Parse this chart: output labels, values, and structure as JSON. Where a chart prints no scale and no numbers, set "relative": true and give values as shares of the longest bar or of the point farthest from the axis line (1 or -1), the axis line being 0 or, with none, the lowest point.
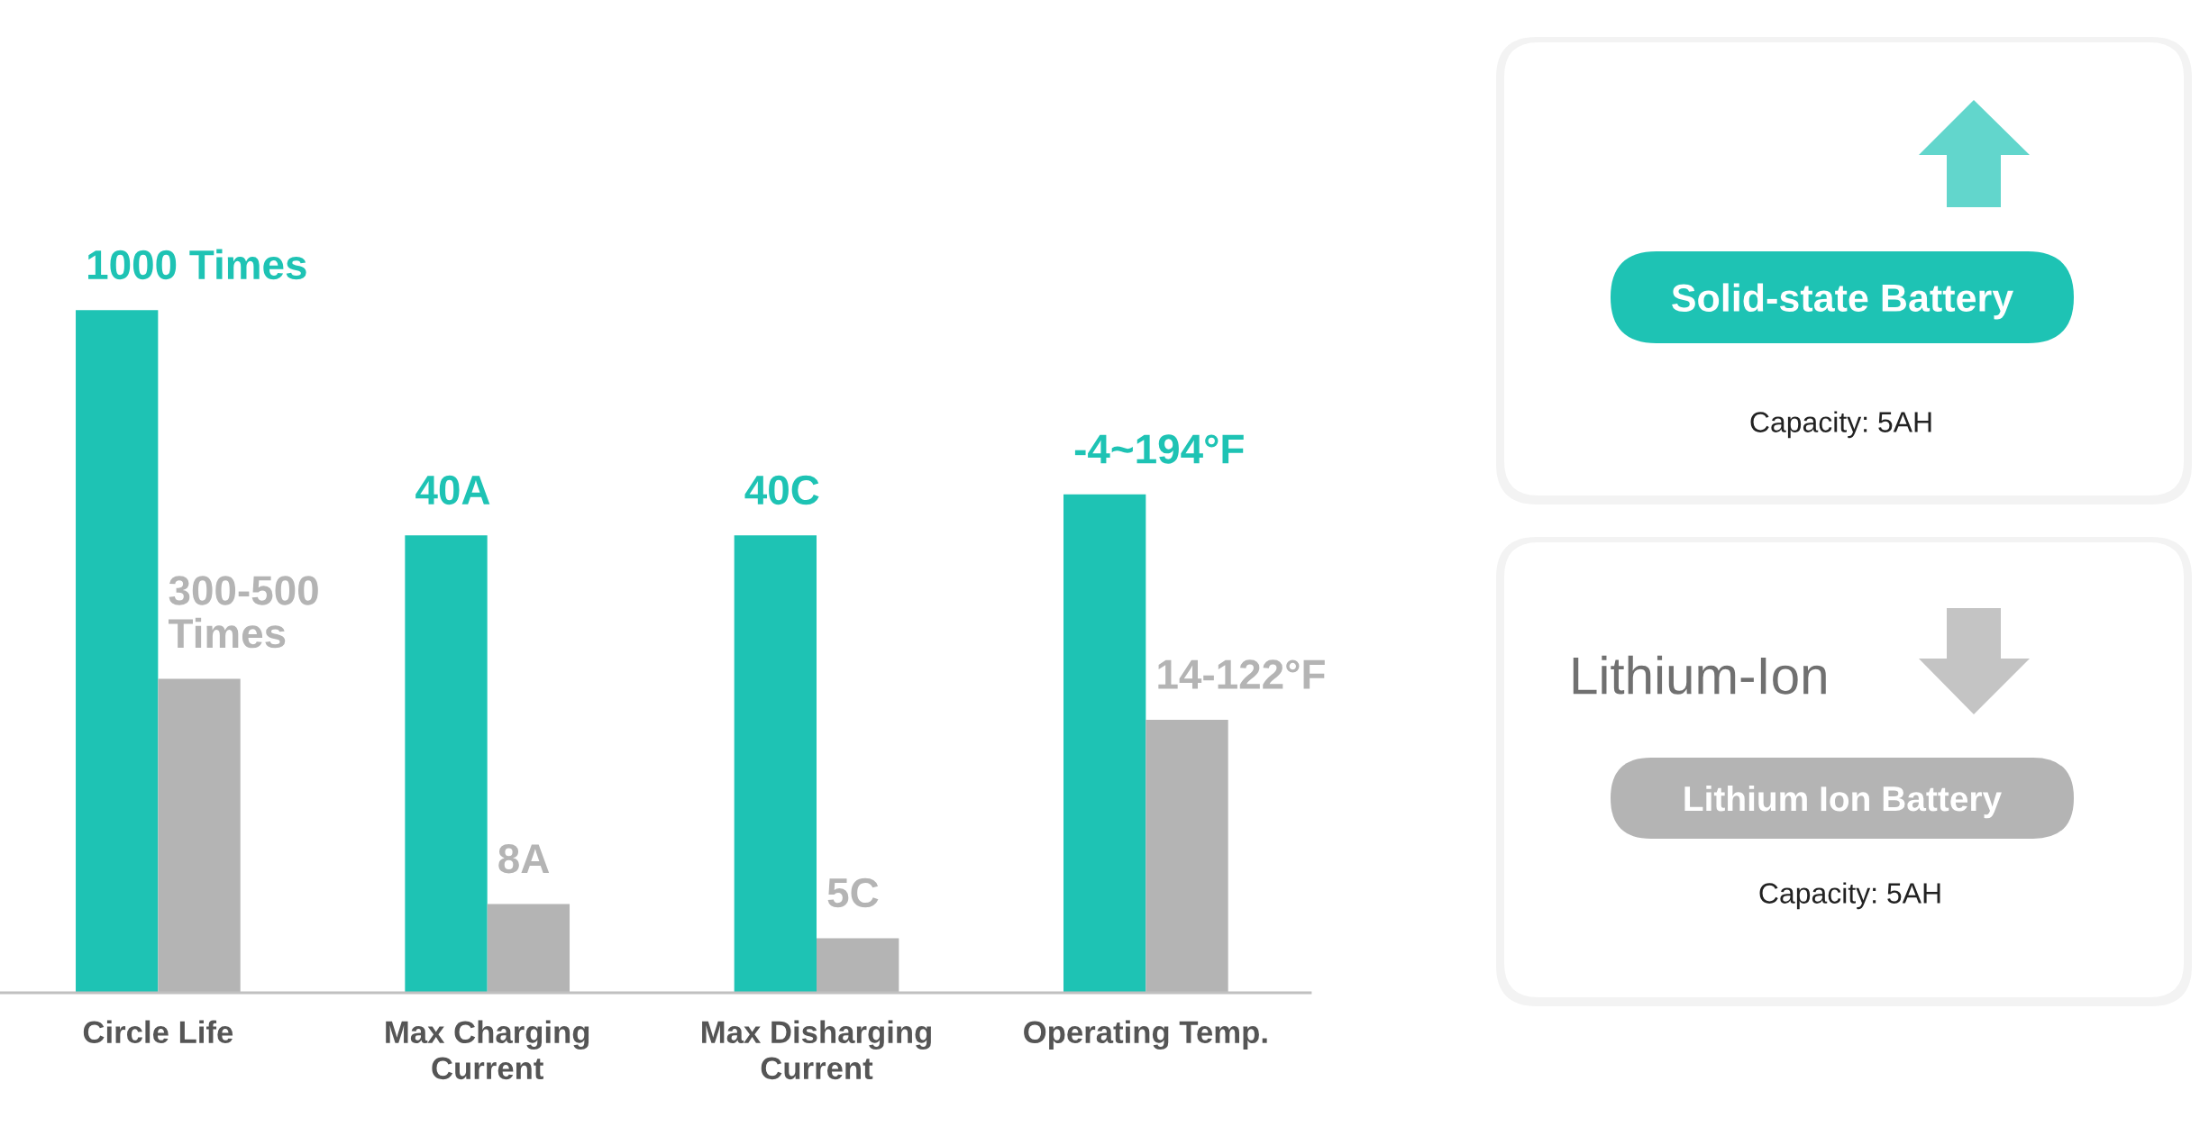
{
  "chart_data": {
    "type": "bar",
    "relative": true,
    "categories": [
      "Circle Life",
      "Max Charging\nCurrent",
      "Max Disharging\nCurrent",
      "Operating Temp."
    ],
    "series": [
      {
        "name": "Solid-state Battery",
        "color": "#1ec3b4",
        "values": [
          1,
          0.67,
          0.67,
          0.73
        ]
      },
      {
        "name": "Lithium Ion Battery",
        "color": "#b4b4b4",
        "values": [
          0.46,
          0.13,
          0.08,
          0.4
        ]
      }
    ],
    "legend": "right",
    "annotations": [
      {
        "text": "1000 Times",
        "x": "Circle Life",
        "y": 1
      },
      {
        "text": "300-500\nTimes",
        "x": "Circle Life",
        "y": 0.46
      },
      {
        "text": "40A",
        "x": "Max Charging\nCurrent",
        "y": 0.67
      },
      {
        "text": "8A",
        "x": "Max Charging\nCurrent",
        "y": 0.13
      },
      {
        "text": "40C",
        "x": "Max Disharging\nCurrent",
        "y": 0.67
      },
      {
        "text": "5C",
        "x": "Max Disharging\nCurrent",
        "y": 0.08
      },
      {
        "text": "-4~194°F",
        "x": "Operating Temp.",
        "y": 0.73
      },
      {
        "text": "14-122°F",
        "x": "Operating Temp.",
        "y": 0.4
      },
      "Capacity: 5AH",
      "Lithium-Ion",
      "Capacity: 5AH"
    ]
  }
}
